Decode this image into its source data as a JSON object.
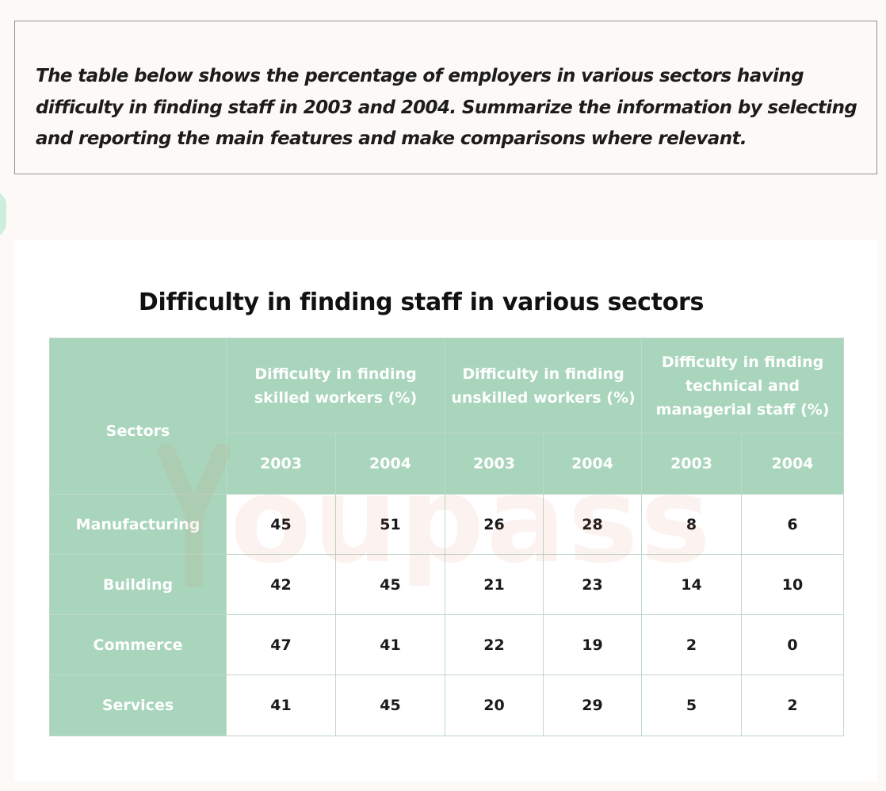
{
  "prompt": {
    "lines": [
      "The table below shows the percentage of employers in various sectors having",
      "difficulty in finding staff in 2003 and 2004. Summarize the information by selecting",
      "and reporting the main features and make comparisons where relevant."
    ]
  },
  "watermark": {
    "text": "oupass",
    "color": "#e06a4a"
  },
  "colors": {
    "header_green": "#a8d5bb",
    "grid_line": "#bfd8c9",
    "page_bg": "#fdf9f6"
  },
  "chart_data": {
    "type": "table",
    "title": "Difficulty in finding staff in various sectors",
    "row_header_label": "Sectors",
    "column_groups": [
      {
        "label_lines": [
          "Difficulty in finding",
          "skilled workers (%)"
        ],
        "years": [
          "2003",
          "2004"
        ]
      },
      {
        "label_lines": [
          "Difficulty in finding",
          "unskilled workers (%)"
        ],
        "years": [
          "2003",
          "2004"
        ]
      },
      {
        "label_lines": [
          "Difficulty in finding",
          "technical and",
          "managerial staff (%)"
        ],
        "years": [
          "2003",
          "2004"
        ]
      }
    ],
    "rows": [
      {
        "sector": "Manufacturing",
        "values": [
          "45",
          "51",
          "26",
          "28",
          "8",
          "6"
        ]
      },
      {
        "sector": "Building",
        "values": [
          "42",
          "45",
          "21",
          "23",
          "14",
          "10"
        ]
      },
      {
        "sector": "Commerce",
        "values": [
          "47",
          "41",
          "22",
          "19",
          "2",
          "0"
        ]
      },
      {
        "sector": "Services",
        "values": [
          "41",
          "45",
          "20",
          "29",
          "5",
          "2"
        ]
      }
    ]
  }
}
